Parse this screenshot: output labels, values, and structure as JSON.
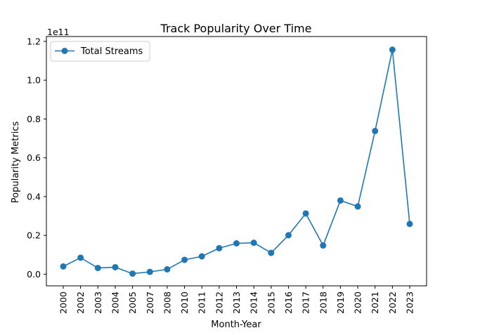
{
  "chart_data": {
    "type": "line",
    "title": "Track Popularity Over Time",
    "xlabel": "Month-Year",
    "ylabel": "Popularity Metrics",
    "y_offset_label": "1e11",
    "categories": [
      "2000",
      "2002",
      "2003",
      "2004",
      "2005",
      "2007",
      "2008",
      "2010",
      "2011",
      "2012",
      "2013",
      "2014",
      "2015",
      "2016",
      "2017",
      "2018",
      "2019",
      "2020",
      "2021",
      "2022",
      "2023"
    ],
    "series": [
      {
        "name": "Total Streams",
        "color": "#1f77b4",
        "values": [
          4000000000.0,
          8500000000.0,
          3200000000.0,
          3600000000.0,
          300000000.0,
          1200000000.0,
          2500000000.0,
          7400000000.0,
          9200000000.0,
          13400000000.0,
          15900000000.0,
          16200000000.0,
          11000000000.0,
          20100000000.0,
          31300000000.0,
          14800000000.0,
          38000000000.0,
          34900000000.0,
          73800000000.0,
          115700000000.0,
          25900000000.0
        ]
      }
    ],
    "ylim": [
      -6000000000.0,
      122500000000.0
    ],
    "yticks": [
      0,
      20000000000.0,
      40000000000.0,
      60000000000.0,
      80000000000.0,
      100000000000.0,
      120000000000.0
    ],
    "ytick_labels": [
      "0.0",
      "0.2",
      "0.4",
      "0.6",
      "0.8",
      "1.0",
      "1.2"
    ],
    "grid": false,
    "legend_position": "upper-left"
  }
}
